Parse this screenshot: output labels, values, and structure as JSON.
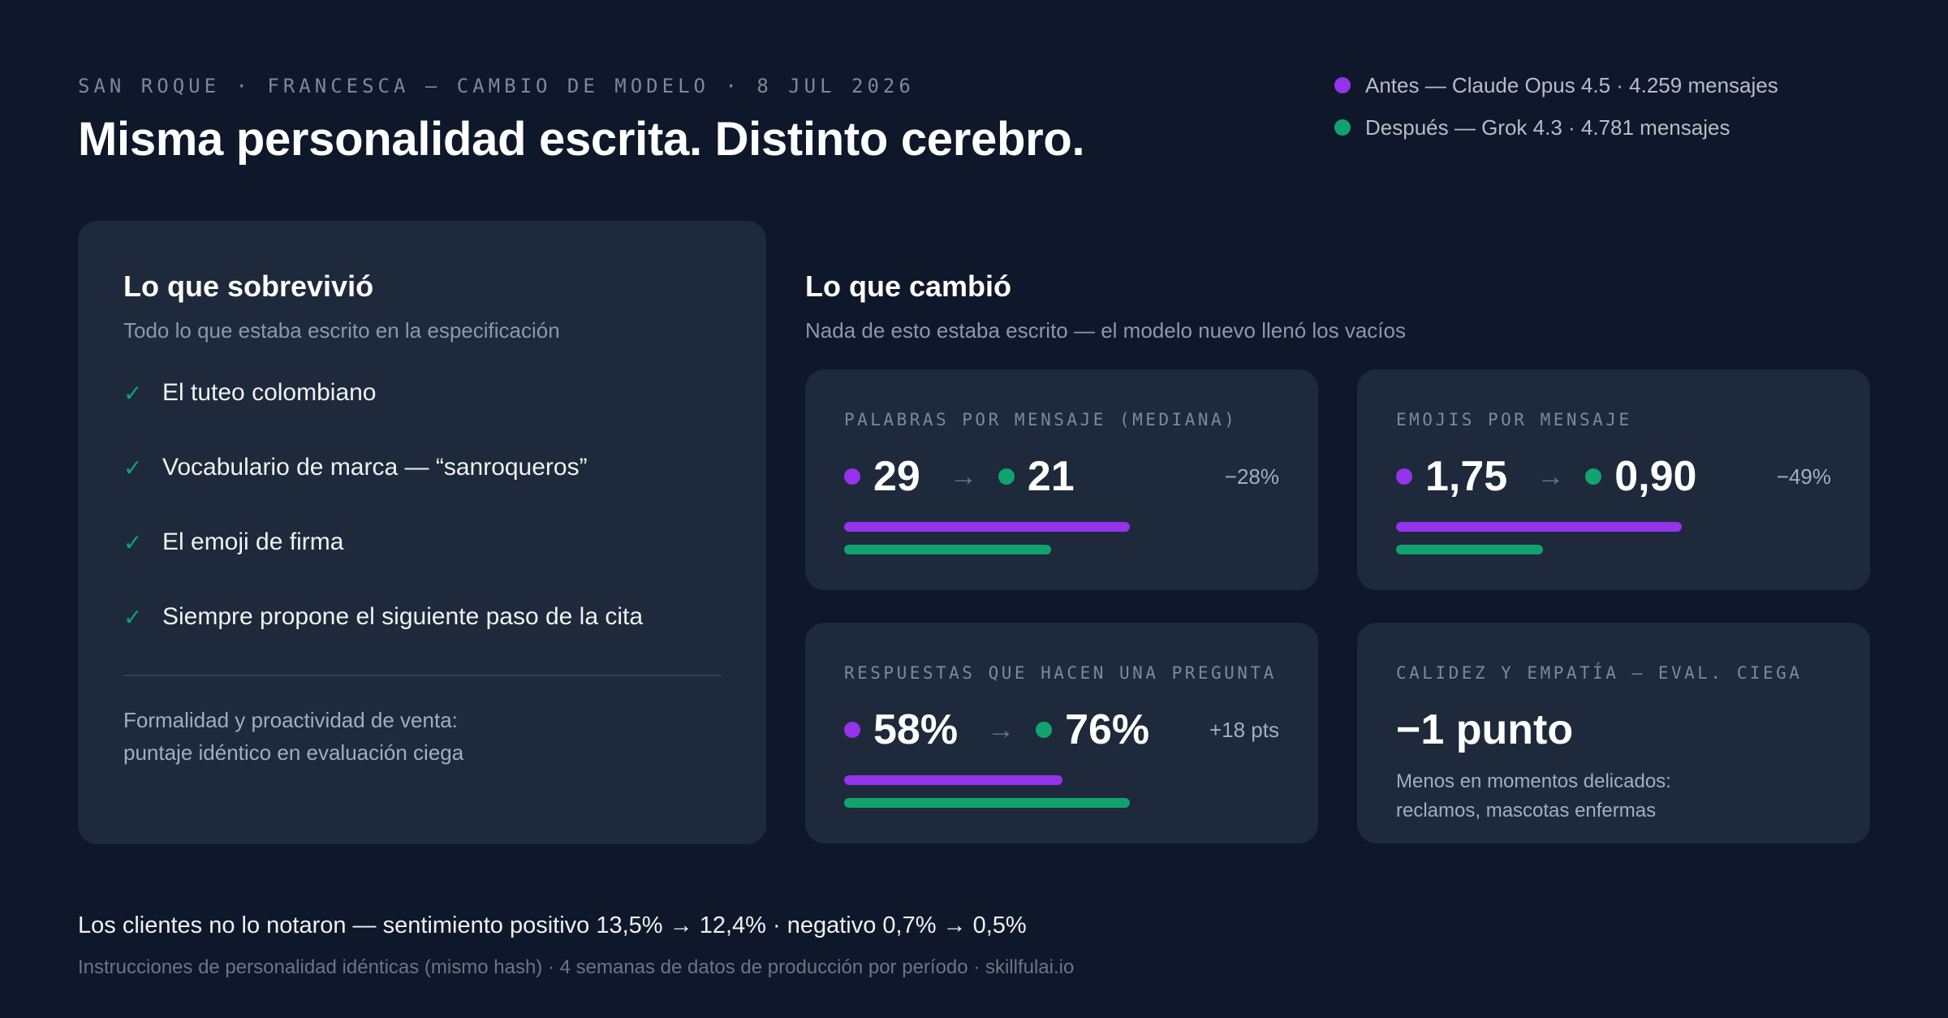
{
  "header": {
    "kicker": "SAN ROQUE · FRANCESCA — CAMBIO DE MODELO · 8 JUL 2026",
    "title": "Misma personalidad escrita. Distinto cerebro."
  },
  "legend": {
    "before": {
      "label": "Antes — Claude Opus 4.5 · 4.259 mensajes",
      "color": "#9333ea"
    },
    "after": {
      "label": "Después — Grok 4.3 · 4.781 mensajes",
      "color": "#10a36e"
    }
  },
  "survived": {
    "title": "Lo que sobrevivió",
    "subtitle": "Todo lo que estaba escrito en la especificación",
    "check_icon": "✓",
    "items": [
      "El tuteo colombiano",
      "Vocabulario de marca — “sanroqueros”",
      "El emoji de firma",
      "Siempre propone el siguiente paso de la cita"
    ],
    "note_line1": "Formalidad y proactividad de venta:",
    "note_line2": "puntaje idéntico en evaluación ciega"
  },
  "changed": {
    "title": "Lo que cambió",
    "subtitle": "Nada de esto estaba escrito — el modelo nuevo llenó los vacíos",
    "arrow": "→",
    "metrics": [
      {
        "label": "PALABRAS POR MENSAJE (MEDIANA)",
        "before": "29",
        "after": "21",
        "delta": "−28%",
        "before_value": 29,
        "after_value": 21
      },
      {
        "label": "EMOJIS POR MENSAJE",
        "before": "1,75",
        "after": "0,90",
        "delta": "−49%",
        "before_value": 1.75,
        "after_value": 0.9
      },
      {
        "label": "RESPUESTAS QUE HACEN UNA PREGUNTA",
        "before": "58%",
        "after": "76%",
        "delta": "+18 pts",
        "before_value": 58,
        "after_value": 76
      }
    ],
    "warmth": {
      "label": "CALIDEZ Y EMPATÍA — EVAL. CIEGA",
      "value": "−1 punto",
      "desc_line1": "Menos en momentos delicados:",
      "desc_line2": "reclamos, mascotas enfermas"
    }
  },
  "footer": {
    "main": "Los clientes no lo notaron — sentimiento positivo 13,5% → 12,4% · negativo 0,7% → 0,5%",
    "sub": "Instrucciones de personalidad idénticas (mismo hash) · 4 semanas de datos de producción por período · skillfulai.io"
  }
}
